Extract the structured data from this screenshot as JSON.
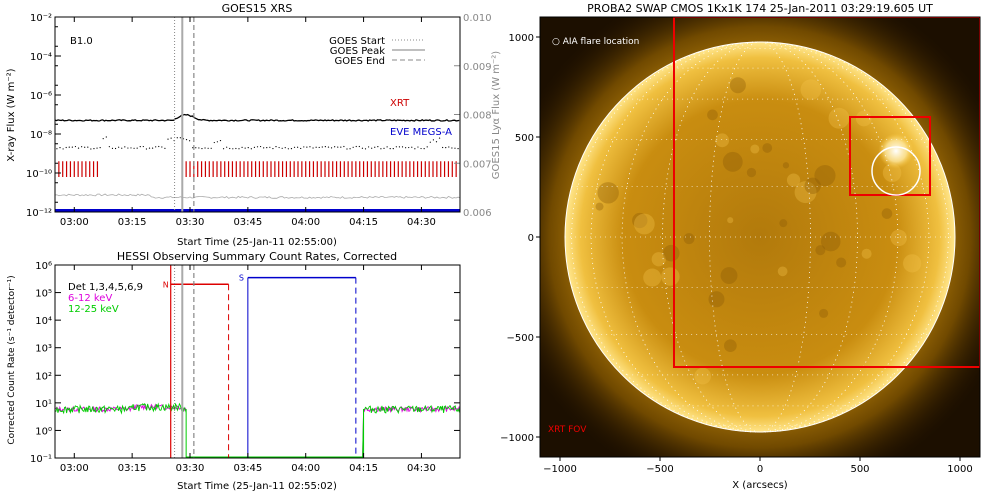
{
  "chart_data": [
    {
      "type": "line",
      "title": "GOES15 XRS",
      "xlabel": "Start Time (25-Jan-11 02:55:00)",
      "ylabel": "X-ray Flux (W m⁻²)",
      "ylabel_right": "GOES15 Lyα Flux (W m⁻²)",
      "x_ticks": [
        "03:00",
        "03:15",
        "03:30",
        "03:45",
        "04:00",
        "04:15",
        "04:30"
      ],
      "y_ticks": [
        "10⁻¹²",
        "10⁻¹⁰",
        "10⁻⁸",
        "10⁻⁶",
        "10⁻⁴",
        "10⁻²"
      ],
      "y_ticks_right": [
        "0.006",
        "0.007",
        "0.008",
        "0.009",
        "0.010"
      ],
      "ylim": [
        1e-12,
        0.01
      ],
      "ylim_right": [
        0.006,
        0.01
      ],
      "class_label": "B1.0",
      "goes_start_label": "GOES Start",
      "goes_peak_label": "GOES Peak",
      "goes_end_label": "GOES End",
      "goes_start_min": 26,
      "goes_peak_min": 28,
      "goes_end_min": 31,
      "xrt_label": "XRT",
      "eve_label": "EVE MEGS-A",
      "xray_long_level": 5e-08,
      "xray_short_level": 2e-09,
      "lya_level": 0.0063,
      "eve_level": 1.2e-12,
      "xrt_gap_min": [
        6,
        29
      ],
      "colors": {
        "xrt": "#cc0000",
        "eve": "#0000cc",
        "peak": "#aaaaaa",
        "lya": "#aaaaaa"
      }
    },
    {
      "type": "line",
      "title": "HESSI Observing Summary Count Rates, Corrected",
      "xlabel": "Start Time (25-Jan-11 02:55:02)",
      "ylabel": "Corrected Count Rate (s⁻¹ detector⁻¹)",
      "x_ticks": [
        "03:00",
        "03:15",
        "03:30",
        "03:45",
        "04:00",
        "04:15",
        "04:30"
      ],
      "y_ticks": [
        "10⁻¹",
        "10⁰",
        "10¹",
        "10²",
        "10³",
        "10⁴",
        "10⁵",
        "10⁶"
      ],
      "ylim": [
        0.1,
        1000000.0
      ],
      "legend": [
        "Det 1,3,4,5,6,9",
        "6-12 keV",
        "12-25 keV"
      ],
      "legend_colors": [
        "#000000",
        "#dd00dd",
        "#00cc00"
      ],
      "night_label": "N",
      "saa_label": "S",
      "night_start_min": 25,
      "night_end_min": 40,
      "night_level": 200000.0,
      "saa_start_min": 45,
      "saa_end_min": 73,
      "saa_level": 350000.0,
      "gap_min": [
        29,
        75
      ],
      "count_level": 6,
      "colors": {
        "night": "#dd0000",
        "saa": "#0000cc",
        "low": "#dd00dd",
        "high": "#00cc00"
      }
    },
    {
      "type": "image",
      "title": "PROBA2 SWAP CMOS 1Kx1K 174 25-Jan-2011 03:29:19.605 UT",
      "xlabel": "X (arcsecs)",
      "x_ticks": [
        "−1000",
        "−500",
        "0",
        "500",
        "1000"
      ],
      "y_ticks": [
        "−1000",
        "−500",
        "0",
        "500",
        "1000"
      ],
      "xlim": [
        -1100,
        1100
      ],
      "ylim": [
        -1100,
        1100
      ],
      "aia_label": "AIA flare location",
      "xrt_fov_label": "XRT FOV",
      "sun_radius_arcsec": 975,
      "xrt_fov": [
        -430,
        -650,
        1100,
        1100
      ],
      "aia_box": [
        450,
        210,
        850,
        600
      ],
      "aia_circle": [
        680,
        330,
        120
      ],
      "colors": {
        "box": "#ee0000",
        "limb": "#ffffff"
      }
    }
  ]
}
